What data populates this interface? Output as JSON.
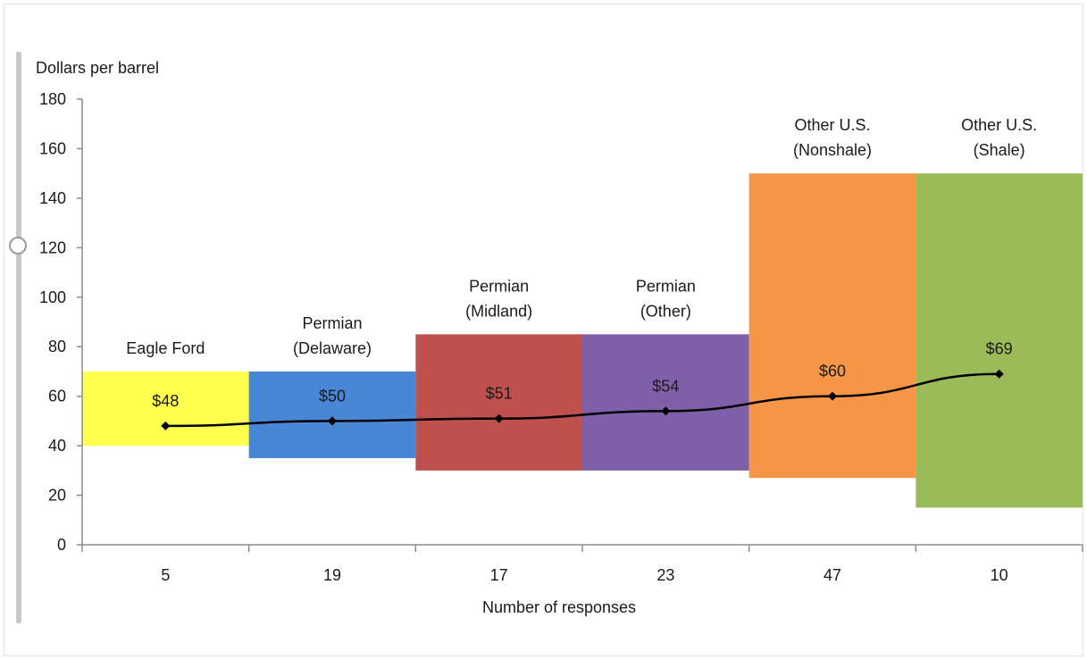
{
  "chart_data": {
    "type": "bar",
    "title": "",
    "ylabel": "Dollars per barrel",
    "xlabel": "Number of responses",
    "ylim": [
      0,
      180
    ],
    "yticks": [
      0,
      20,
      40,
      60,
      80,
      100,
      120,
      140,
      160,
      180
    ],
    "grid": false,
    "categories": [
      {
        "region": [
          "Eagle Ford"
        ],
        "responses": "5",
        "low": 40,
        "high": 70,
        "mean": 48,
        "mean_label": "$48",
        "color": "#ffff4d"
      },
      {
        "region": [
          "Permian",
          "(Delaware)"
        ],
        "responses": "19",
        "low": 35,
        "high": 70,
        "mean": 50,
        "mean_label": "$50",
        "color": "#4a86d6"
      },
      {
        "region": [
          "Permian",
          "(Midland)"
        ],
        "responses": "17",
        "low": 30,
        "high": 85,
        "mean": 51,
        "mean_label": "$51",
        "color": "#c0504d"
      },
      {
        "region": [
          "Permian",
          "(Other)"
        ],
        "responses": "23",
        "low": 30,
        "high": 85,
        "mean": 54,
        "mean_label": "$54",
        "color": "#7f5fa8"
      },
      {
        "region": [
          "Other U.S.",
          "(Nonshale)"
        ],
        "responses": "47",
        "low": 27,
        "high": 150,
        "mean": 60,
        "mean_label": "$60",
        "color": "#f79646"
      },
      {
        "region": [
          "Other U.S.",
          "(Shale)"
        ],
        "responses": "10",
        "low": 15,
        "high": 150,
        "mean": 69,
        "mean_label": "$69",
        "color": "#9bbb59"
      }
    ]
  }
}
